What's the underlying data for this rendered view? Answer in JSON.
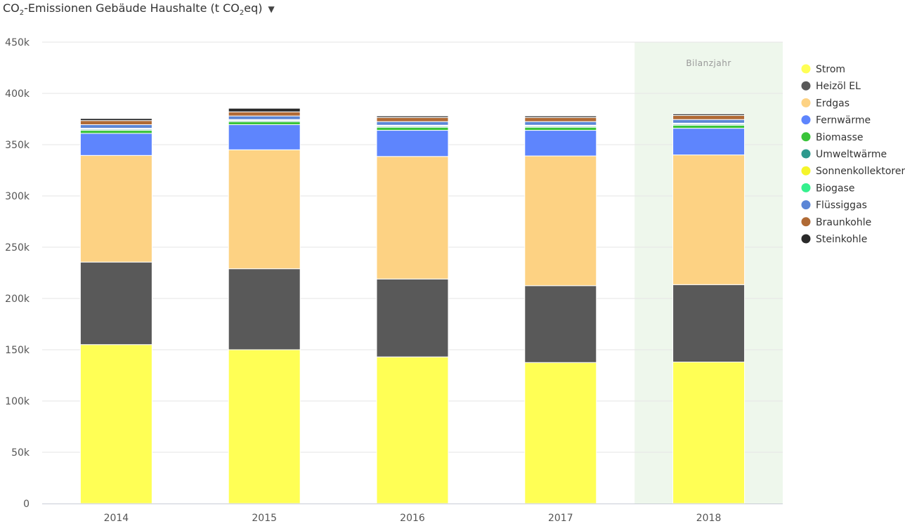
{
  "title": {
    "prefix": "CO",
    "sub1": "2",
    "middle": "-Emissionen Gebäude Haushalte (t CO",
    "sub2": "2",
    "suffix": "eq)",
    "dropdown_icon": "caret-down-icon"
  },
  "chart_data": {
    "type": "bar",
    "stacked": true,
    "categories": [
      "2014",
      "2015",
      "2016",
      "2017",
      "2018"
    ],
    "ylim": [
      0,
      450000
    ],
    "yticks": [
      0,
      50000,
      100000,
      150000,
      200000,
      250000,
      300000,
      350000,
      400000,
      450000
    ],
    "ytick_labels": [
      "0",
      "50k",
      "100k",
      "150k",
      "200k",
      "250k",
      "300k",
      "350k",
      "400k",
      "450k"
    ],
    "grid": true,
    "legend_position": "right",
    "highlight": {
      "category": "2018",
      "label": "Bilanzjahr",
      "color": "#eef7ec"
    },
    "series": [
      {
        "name": "Strom",
        "color": "#ffff55",
        "values": [
          155000,
          150000,
          143000,
          137500,
          138000
        ]
      },
      {
        "name": "Heizöl EL",
        "color": "#595959",
        "values": [
          80500,
          79000,
          76000,
          75000,
          75500
        ]
      },
      {
        "name": "Erdgas",
        "color": "#fdd283",
        "values": [
          104000,
          116000,
          119500,
          126500,
          126500
        ]
      },
      {
        "name": "Fernwärme",
        "color": "#5e85fd",
        "values": [
          21500,
          24500,
          25500,
          25000,
          26000
        ]
      },
      {
        "name": "Biomasse",
        "color": "#3ac43a",
        "values": [
          3000,
          3000,
          3000,
          3000,
          3000
        ]
      },
      {
        "name": "Umweltwärme",
        "color": "#2e9a8e",
        "values": [
          1000,
          1000,
          1000,
          1000,
          1000
        ]
      },
      {
        "name": "Sonnenkollektoren",
        "color": "#f5f52a",
        "values": [
          500,
          500,
          500,
          500,
          500
        ]
      },
      {
        "name": "Biogase",
        "color": "#35f08e",
        "values": [
          500,
          500,
          500,
          500,
          500
        ]
      },
      {
        "name": "Flüssiggas",
        "color": "#5b86d6",
        "values": [
          3500,
          3500,
          3500,
          3500,
          3500
        ]
      },
      {
        "name": "Braunkohle",
        "color": "#b06a35",
        "values": [
          4000,
          4000,
          4000,
          4000,
          4000
        ]
      },
      {
        "name": "Steinkohle",
        "color": "#2a2a2a",
        "values": [
          2000,
          3500,
          1500,
          1500,
          1500
        ]
      }
    ]
  }
}
